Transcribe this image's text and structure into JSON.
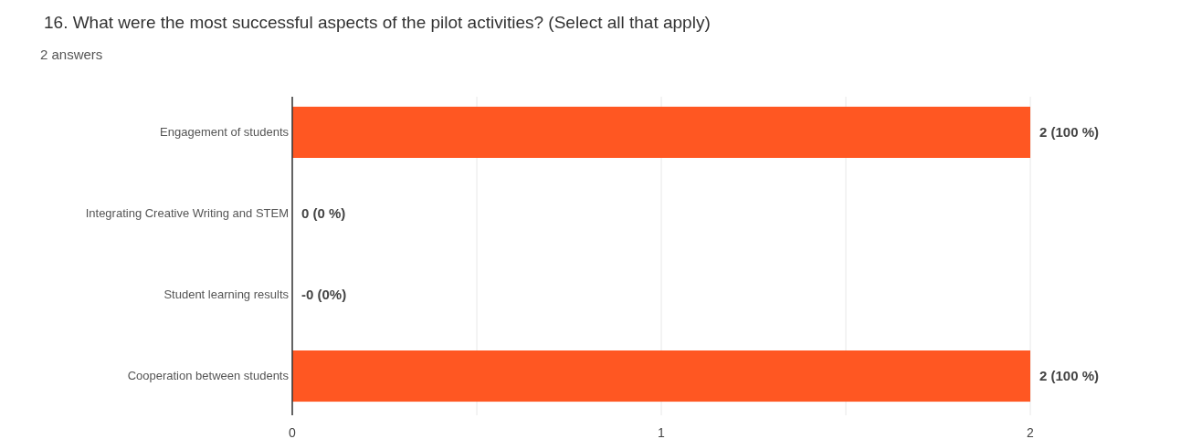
{
  "chart_data": {
    "type": "bar",
    "orientation": "horizontal",
    "title": "16. What were the most successful aspects of the pilot activities? (Select all that apply)",
    "subtitle": "2 answers",
    "categories": [
      "Engagement of students",
      "Integrating Creative Writing and STEM",
      "Student learning results",
      "Cooperation between students"
    ],
    "values": [
      2,
      0,
      0,
      2
    ],
    "value_labels": [
      "2 (100 %)",
      "0 (0 %)",
      "-0 (0%)",
      "2 (100 %)"
    ],
    "color": "#ff5722",
    "xlim": [
      0,
      2
    ],
    "xticks": [
      0,
      {
        "value": 0.5,
        "label": null
      },
      1,
      {
        "value": 1.5,
        "label": null
      },
      2
    ],
    "grid": "x"
  }
}
